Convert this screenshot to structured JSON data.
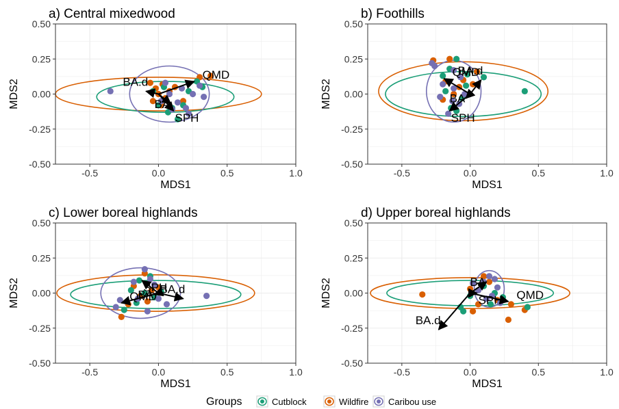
{
  "colors": {
    "cutblock": "#1b9e77",
    "wildfire": "#d95f02",
    "caribou": "#7570b3",
    "grid": "#ebebeb",
    "border": "#333333"
  },
  "legend": {
    "title": "Groups",
    "items": [
      {
        "key": "cutblock",
        "label": "Cutblock"
      },
      {
        "key": "wildfire",
        "label": "Wildfire"
      },
      {
        "key": "caribou",
        "label": "Caribou use"
      }
    ]
  },
  "chart_data": [
    {
      "type": "scatter",
      "title": "a) Central mixedwood",
      "xlabel": "MDS1",
      "ylabel": "MDS2",
      "xlim": [
        -0.75,
        1.0
      ],
      "ylim": [
        -0.5,
        0.5
      ],
      "xticks": [
        "-0.5",
        "0.0",
        "0.5",
        "1.0"
      ],
      "yticks": [
        "-0.50",
        "-0.25",
        "0.00",
        "0.25",
        "0.50"
      ],
      "grid": true,
      "ellipses": [
        {
          "group": "wildfire",
          "cx": 0.0,
          "cy": 0.0,
          "rx": 0.75,
          "ry": 0.12
        },
        {
          "group": "cutblock",
          "cx": 0.05,
          "cy": -0.02,
          "rx": 0.5,
          "ry": 0.11
        },
        {
          "group": "caribou",
          "cx": 0.08,
          "cy": 0.0,
          "rx": 0.29,
          "ry": 0.2
        }
      ],
      "vectors": [
        {
          "label": "QMD",
          "x": 0.26,
          "y": 0.09
        },
        {
          "label": "BA.d",
          "x": -0.09,
          "y": 0.02
        },
        {
          "label": "BA",
          "x": 0.09,
          "y": -0.07
        },
        {
          "label": "SPH",
          "x": 0.11,
          "y": -0.12
        }
      ],
      "points": [
        [
          0.0,
          0.0,
          "wildfire"
        ],
        [
          -0.02,
          0.04,
          "wildfire"
        ],
        [
          0.03,
          0.07,
          "wildfire"
        ],
        [
          0.05,
          -0.03,
          "wildfire"
        ],
        [
          0.08,
          0.02,
          "wildfire"
        ],
        [
          -0.04,
          -0.05,
          "wildfire"
        ],
        [
          0.12,
          0.05,
          "wildfire"
        ],
        [
          0.02,
          -0.08,
          "wildfire"
        ],
        [
          0.3,
          0.12,
          "wildfire"
        ],
        [
          0.38,
          0.13,
          "wildfire"
        ],
        [
          0.18,
          -0.05,
          "wildfire"
        ],
        [
          -0.06,
          0.08,
          "wildfire"
        ],
        [
          0.0,
          -0.08,
          "cutblock"
        ],
        [
          0.04,
          0.05,
          "cutblock"
        ],
        [
          0.1,
          -0.1,
          "cutblock"
        ],
        [
          0.14,
          -0.18,
          "cutblock"
        ],
        [
          0.22,
          0.02,
          "cutblock"
        ],
        [
          0.28,
          0.09,
          "cutblock"
        ],
        [
          -0.04,
          0.02,
          "cutblock"
        ],
        [
          0.07,
          -0.13,
          "cutblock"
        ],
        [
          0.18,
          -0.08,
          "cutblock"
        ],
        [
          0.32,
          0.05,
          "cutblock"
        ],
        [
          -0.35,
          0.02,
          "caribou"
        ],
        [
          0.02,
          -0.05,
          "caribou"
        ],
        [
          0.08,
          0.0,
          "caribou"
        ],
        [
          0.14,
          -0.06,
          "caribou"
        ],
        [
          0.2,
          -0.1,
          "caribou"
        ],
        [
          0.25,
          0.0,
          "caribou"
        ],
        [
          0.3,
          0.06,
          "caribou"
        ],
        [
          0.33,
          -0.02,
          "caribou"
        ],
        [
          0.22,
          -0.14,
          "caribou"
        ],
        [
          0.1,
          -0.11,
          "caribou"
        ],
        [
          0.05,
          0.08,
          "caribou"
        ],
        [
          0.17,
          0.04,
          "caribou"
        ]
      ]
    },
    {
      "type": "scatter",
      "title": "b) Foothills",
      "xlabel": "MDS1",
      "ylabel": "MDS2",
      "xlim": [
        -0.75,
        1.0
      ],
      "ylim": [
        -0.5,
        0.5
      ],
      "xticks": [
        "-0.5",
        "0.0",
        "0.5",
        "1.0"
      ],
      "yticks": [
        "-0.50",
        "-0.25",
        "0.00",
        "0.25",
        "0.50"
      ],
      "grid": true,
      "ellipses": [
        {
          "group": "wildfire",
          "cx": -0.05,
          "cy": 0.02,
          "rx": 0.62,
          "ry": 0.21
        },
        {
          "group": "cutblock",
          "cx": -0.05,
          "cy": 0.0,
          "rx": 0.57,
          "ry": 0.16
        },
        {
          "group": "caribou",
          "cx": -0.12,
          "cy": 0.02,
          "rx": 0.2,
          "ry": 0.22
        }
      ],
      "vectors": [
        {
          "label": "QMD",
          "x": -0.19,
          "y": 0.11
        },
        {
          "label": "BA.d",
          "x": 0.08,
          "y": 0.1
        },
        {
          "label": "BA",
          "x": -0.03,
          "y": -0.03
        },
        {
          "label": "SPH",
          "x": -0.15,
          "y": -0.12
        }
      ],
      "points": [
        [
          -0.27,
          0.24,
          "wildfire"
        ],
        [
          -0.15,
          0.25,
          "wildfire"
        ],
        [
          0.05,
          0.16,
          "wildfire"
        ],
        [
          -0.18,
          0.09,
          "wildfire"
        ],
        [
          -0.08,
          0.05,
          "wildfire"
        ],
        [
          -0.12,
          0.0,
          "wildfire"
        ],
        [
          -0.2,
          -0.04,
          "wildfire"
        ],
        [
          -0.05,
          0.1,
          "wildfire"
        ],
        [
          0.02,
          0.07,
          "wildfire"
        ],
        [
          -0.1,
          0.25,
          "cutblock"
        ],
        [
          -0.15,
          0.18,
          "cutblock"
        ],
        [
          -0.02,
          0.14,
          "cutblock"
        ],
        [
          0.1,
          0.12,
          "cutblock"
        ],
        [
          0.4,
          0.02,
          "cutblock"
        ],
        [
          -0.06,
          -0.03,
          "cutblock"
        ],
        [
          -0.14,
          -0.1,
          "cutblock"
        ],
        [
          -0.18,
          0.02,
          "cutblock"
        ],
        [
          -0.1,
          -0.12,
          "cutblock"
        ],
        [
          -0.03,
          0.06,
          "cutblock"
        ],
        [
          -0.2,
          0.13,
          "cutblock"
        ],
        [
          -0.28,
          0.22,
          "caribou"
        ],
        [
          -0.26,
          0.2,
          "caribou"
        ],
        [
          -0.12,
          0.17,
          "caribou"
        ],
        [
          -0.2,
          0.07,
          "caribou"
        ],
        [
          -0.12,
          0.04,
          "caribou"
        ],
        [
          -0.08,
          -0.07,
          "caribou"
        ],
        [
          -0.16,
          -0.14,
          "caribou"
        ],
        [
          -0.04,
          0.0,
          "caribou"
        ],
        [
          -0.13,
          -0.05,
          "caribou"
        ],
        [
          -0.22,
          -0.02,
          "caribou"
        ],
        [
          -0.07,
          0.12,
          "caribou"
        ]
      ]
    },
    {
      "type": "scatter",
      "title": "c) Lower boreal highlands",
      "xlabel": "MDS1",
      "ylabel": "MDS2",
      "xlim": [
        -0.75,
        1.0
      ],
      "ylim": [
        -0.5,
        0.5
      ],
      "xticks": [
        "-0.5",
        "0.0",
        "0.5",
        "1.0"
      ],
      "yticks": [
        "-0.50",
        "-0.25",
        "0.00",
        "0.25",
        "0.50"
      ],
      "grid": true,
      "ellipses": [
        {
          "group": "wildfire",
          "cx": -0.02,
          "cy": 0.0,
          "rx": 0.72,
          "ry": 0.13
        },
        {
          "group": "cutblock",
          "cx": -0.02,
          "cy": -0.01,
          "rx": 0.62,
          "ry": 0.1
        },
        {
          "group": "caribou",
          "cx": -0.13,
          "cy": 0.0,
          "rx": 0.29,
          "ry": 0.18
        }
      ],
      "vectors": [
        {
          "label": "SPH",
          "x": -0.12,
          "y": 0.09
        },
        {
          "label": "BA",
          "x": -0.03,
          "y": -0.01
        },
        {
          "label": "BA.d",
          "x": 0.18,
          "y": -0.04
        },
        {
          "label": "QMD",
          "x": -0.27,
          "y": -0.07
        }
      ],
      "points": [
        [
          -0.1,
          0.14,
          "wildfire"
        ],
        [
          -0.18,
          0.05,
          "wildfire"
        ],
        [
          -0.05,
          0.02,
          "wildfire"
        ],
        [
          -0.13,
          -0.02,
          "wildfire"
        ],
        [
          -0.22,
          -0.08,
          "wildfire"
        ],
        [
          -0.27,
          -0.17,
          "wildfire"
        ],
        [
          0.0,
          0.04,
          "wildfire"
        ],
        [
          -0.08,
          -0.06,
          "wildfire"
        ],
        [
          -0.25,
          -0.12,
          "cutblock"
        ],
        [
          -0.2,
          0.02,
          "cutblock"
        ],
        [
          -0.14,
          0.09,
          "cutblock"
        ],
        [
          -0.06,
          0.12,
          "cutblock"
        ],
        [
          -0.1,
          0.0,
          "cutblock"
        ],
        [
          -0.03,
          -0.03,
          "cutblock"
        ],
        [
          0.02,
          0.01,
          "cutblock"
        ],
        [
          -0.16,
          -0.07,
          "cutblock"
        ],
        [
          -0.1,
          0.17,
          "caribou"
        ],
        [
          -0.06,
          0.1,
          "caribou"
        ],
        [
          -0.18,
          0.08,
          "caribou"
        ],
        [
          -0.28,
          -0.05,
          "caribou"
        ],
        [
          -0.31,
          -0.1,
          "caribou"
        ],
        [
          -0.08,
          -0.13,
          "caribou"
        ],
        [
          0.06,
          -0.08,
          "caribou"
        ],
        [
          0.35,
          -0.02,
          "caribou"
        ],
        [
          -0.03,
          0.06,
          "caribou"
        ],
        [
          -0.15,
          -0.04,
          "caribou"
        ],
        [
          0.0,
          -0.04,
          "caribou"
        ]
      ]
    },
    {
      "type": "scatter",
      "title": "d) Upper boreal highlands",
      "xlabel": "MDS1",
      "ylabel": "MDS2",
      "xlim": [
        -0.75,
        1.0
      ],
      "ylim": [
        -0.5,
        0.5
      ],
      "xticks": [
        "-0.5",
        "0.0",
        "0.5",
        "1.0"
      ],
      "yticks": [
        "-0.50",
        "-0.25",
        "0.00",
        "0.25",
        "0.50"
      ],
      "grid": true,
      "ellipses": [
        {
          "group": "wildfire",
          "cx": 0.0,
          "cy": 0.0,
          "rx": 0.73,
          "ry": 0.11
        },
        {
          "group": "cutblock",
          "cx": 0.0,
          "cy": 0.0,
          "rx": 0.61,
          "ry": 0.09
        },
        {
          "group": "caribou",
          "cx": 0.14,
          "cy": 0.03,
          "rx": 0.11,
          "ry": 0.13
        }
      ],
      "vectors": [
        {
          "label": "BA",
          "x": 0.12,
          "y": 0.08
        },
        {
          "label": "SPH",
          "x": 0.05,
          "y": 0.0
        },
        {
          "label": "QMD",
          "x": 0.28,
          "y": -0.06
        },
        {
          "label": "BA.d",
          "x": -0.23,
          "y": -0.26
        }
      ],
      "points": [
        [
          -0.35,
          -0.01,
          "wildfire"
        ],
        [
          0.0,
          0.03,
          "wildfire"
        ],
        [
          0.06,
          -0.08,
          "wildfire"
        ],
        [
          0.02,
          -0.13,
          "wildfire"
        ],
        [
          0.1,
          0.12,
          "wildfire"
        ],
        [
          0.2,
          -0.05,
          "wildfire"
        ],
        [
          0.28,
          -0.19,
          "wildfire"
        ],
        [
          0.3,
          -0.08,
          "wildfire"
        ],
        [
          0.4,
          -0.12,
          "wildfire"
        ],
        [
          0.14,
          0.08,
          "wildfire"
        ],
        [
          -0.05,
          -0.13,
          "cutblock"
        ],
        [
          -0.07,
          -0.1,
          "cutblock"
        ],
        [
          0.0,
          -0.02,
          "cutblock"
        ],
        [
          0.1,
          0.05,
          "cutblock"
        ],
        [
          0.18,
          0.0,
          "cutblock"
        ],
        [
          0.24,
          -0.03,
          "cutblock"
        ],
        [
          0.15,
          -0.08,
          "cutblock"
        ],
        [
          0.42,
          -0.1,
          "cutblock"
        ],
        [
          0.1,
          0.08,
          "caribou"
        ],
        [
          0.14,
          0.12,
          "caribou"
        ],
        [
          0.2,
          0.04,
          "caribou"
        ],
        [
          0.16,
          -0.02,
          "caribou"
        ],
        [
          0.22,
          -0.07,
          "caribou"
        ],
        [
          0.06,
          0.02,
          "caribou"
        ],
        [
          0.12,
          -0.04,
          "caribou"
        ],
        [
          0.02,
          0.07,
          "caribou"
        ],
        [
          0.18,
          0.1,
          "caribou"
        ]
      ]
    }
  ]
}
